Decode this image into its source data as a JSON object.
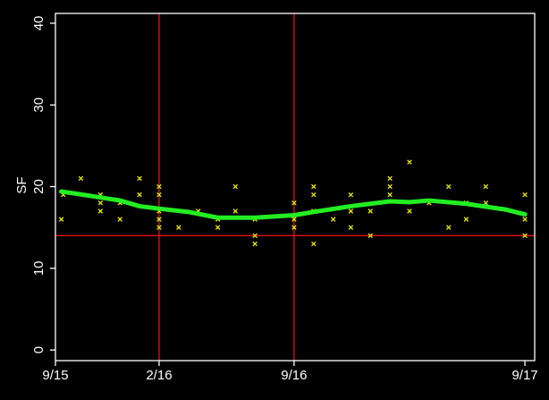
{
  "chart_data": {
    "type": "scatter",
    "y_label": "SF",
    "x": [
      0.3,
      0.4,
      1.3,
      2.3,
      2.3,
      2.3,
      3.3,
      3.3,
      4.3,
      4.3,
      5.3,
      5.3,
      5.3,
      5.3,
      5.3,
      6.3,
      7.3,
      8.3,
      8.3,
      9.2,
      9.2,
      10.2,
      10.2,
      10.2,
      12.2,
      12.2,
      12.2,
      13.2,
      13.2,
      13.2,
      13.2,
      14.2,
      15.1,
      15.1,
      15.1,
      16.1,
      16.1,
      17.1,
      17.1,
      17.1,
      18.1,
      18.1,
      19.1,
      20.1,
      20.1,
      21.0,
      21.0,
      22.0,
      22.0,
      24,
      24,
      24
    ],
    "values": [
      16,
      19,
      21,
      19,
      18,
      17,
      18,
      16,
      21,
      19,
      20,
      19,
      17,
      16,
      15,
      15,
      17,
      16,
      15,
      20,
      17,
      14,
      13,
      16,
      18,
      16,
      15,
      20,
      19,
      17,
      13,
      16,
      19,
      17,
      15,
      17,
      14,
      21,
      20,
      19,
      23,
      17,
      18,
      20,
      15,
      18,
      16,
      20,
      18,
      19,
      16,
      14
    ],
    "point_color": "#e6e600",
    "smooth": {
      "x": [
        0.3,
        1.7,
        3.3,
        4.3,
        5.3,
        6.8,
        8.3,
        10.2,
        12.2,
        13.2,
        15.1,
        17.1,
        18.1,
        19.1,
        21.0,
        23.0,
        24
      ],
      "values": [
        19.4,
        18.9,
        18.3,
        17.6,
        17.3,
        16.9,
        16.2,
        16.2,
        16.5,
        16.9,
        17.6,
        18.2,
        18.1,
        18.3,
        17.9,
        17.2,
        16.6
      ],
      "color": "#22ee22"
    },
    "ref_lines": {
      "x": [
        5.3,
        12.2
      ],
      "y": [
        14
      ],
      "color": "#e81010"
    },
    "xlim": [
      0,
      24.5
    ],
    "ylim": [
      -1.3,
      41.2
    ],
    "xticks": [
      {
        "value": 0,
        "label": "9/15"
      },
      {
        "value": 5.3,
        "label": "2/16"
      },
      {
        "value": 12.2,
        "label": "9/16"
      },
      {
        "value": 24,
        "label": "9/17"
      }
    ],
    "yticks": [
      0,
      10,
      20,
      30,
      40
    ]
  }
}
